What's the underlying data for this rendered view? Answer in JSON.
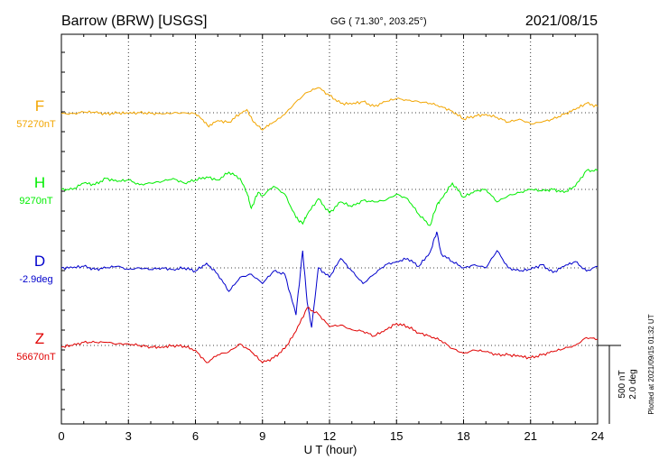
{
  "header": {
    "station": "Barrow (BRW)  [USGS]",
    "coords": "GG ( 71.30°, 203.25°)",
    "date": "2021/08/15"
  },
  "plotted_note": "Plotted at 2021/09/15 01:32 UT",
  "chart_data": {
    "type": "line",
    "xlabel": "U T (hour)",
    "xlim": [
      0,
      24
    ],
    "xticks": [
      0,
      3,
      6,
      9,
      12,
      15,
      18,
      21,
      24
    ],
    "grid": "dotted",
    "scale_bar": {
      "label_nt": "500 nT",
      "label_deg": "2.0 deg",
      "nt": 500,
      "deg": 2.0
    },
    "series": [
      {
        "name": "F",
        "baseline_label": "57270nT",
        "color": "#f2a500",
        "points": [
          [
            0,
            -6
          ],
          [
            0.5,
            -6
          ],
          [
            1,
            4
          ],
          [
            1.5,
            2
          ],
          [
            2,
            -8
          ],
          [
            2.5,
            -2
          ],
          [
            3,
            -4
          ],
          [
            3.5,
            0
          ],
          [
            4,
            -4
          ],
          [
            4.5,
            -8
          ],
          [
            5,
            -2
          ],
          [
            5.5,
            0
          ],
          [
            6,
            -6
          ],
          [
            6.2,
            -30
          ],
          [
            6.6,
            -90
          ],
          [
            7,
            -50
          ],
          [
            7.5,
            -60
          ],
          [
            8,
            -5
          ],
          [
            8.3,
            20
          ],
          [
            8.6,
            -60
          ],
          [
            9,
            -110
          ],
          [
            9.4,
            -70
          ],
          [
            10,
            -10
          ],
          [
            10.5,
            70
          ],
          [
            11,
            130
          ],
          [
            11.5,
            160
          ],
          [
            12,
            110
          ],
          [
            12.5,
            60
          ],
          [
            13,
            55
          ],
          [
            13.5,
            70
          ],
          [
            14,
            40
          ],
          [
            14.5,
            70
          ],
          [
            15,
            90
          ],
          [
            15.5,
            80
          ],
          [
            16,
            70
          ],
          [
            16.5,
            60
          ],
          [
            17,
            40
          ],
          [
            17.5,
            10
          ],
          [
            18,
            -40
          ],
          [
            18.5,
            -20
          ],
          [
            19,
            -10
          ],
          [
            19.5,
            -30
          ],
          [
            20,
            -60
          ],
          [
            20.5,
            -40
          ],
          [
            21,
            -70
          ],
          [
            21.5,
            -60
          ],
          [
            22,
            -40
          ],
          [
            22.5,
            -10
          ],
          [
            23,
            20
          ],
          [
            23.5,
            60
          ],
          [
            24,
            40
          ]
        ]
      },
      {
        "name": "H",
        "baseline_label": "9270nT",
        "color": "#00ee00",
        "points": [
          [
            0,
            0
          ],
          [
            0.5,
            0
          ],
          [
            1,
            40
          ],
          [
            1.5,
            30
          ],
          [
            2,
            70
          ],
          [
            2.5,
            50
          ],
          [
            3,
            60
          ],
          [
            3.5,
            30
          ],
          [
            4,
            40
          ],
          [
            4.5,
            50
          ],
          [
            5,
            70
          ],
          [
            5.5,
            40
          ],
          [
            6,
            60
          ],
          [
            6.5,
            80
          ],
          [
            7,
            60
          ],
          [
            7.5,
            110
          ],
          [
            8,
            70
          ],
          [
            8.3,
            -20
          ],
          [
            8.5,
            -120
          ],
          [
            8.8,
            -20
          ],
          [
            9,
            -40
          ],
          [
            9.5,
            20
          ],
          [
            10,
            -30
          ],
          [
            10.5,
            -180
          ],
          [
            10.8,
            -220
          ],
          [
            11,
            -160
          ],
          [
            11.5,
            -60
          ],
          [
            12,
            -150
          ],
          [
            12.5,
            -80
          ],
          [
            13,
            -110
          ],
          [
            13.5,
            -70
          ],
          [
            14,
            -80
          ],
          [
            14.5,
            -70
          ],
          [
            15,
            -30
          ],
          [
            15.5,
            -60
          ],
          [
            16,
            -160
          ],
          [
            16.5,
            -230
          ],
          [
            16.8,
            -100
          ],
          [
            17,
            -60
          ],
          [
            17.5,
            40
          ],
          [
            18,
            -50
          ],
          [
            18.5,
            -10
          ],
          [
            19,
            0
          ],
          [
            19.5,
            -80
          ],
          [
            20,
            -40
          ],
          [
            20.5,
            -20
          ],
          [
            21,
            0
          ],
          [
            21.5,
            -10
          ],
          [
            22,
            0
          ],
          [
            22.5,
            -20
          ],
          [
            23,
            20
          ],
          [
            23.5,
            120
          ],
          [
            24,
            120
          ]
        ]
      },
      {
        "name": "D",
        "baseline_label": "-2.9deg",
        "color": "#0000cc",
        "points": [
          [
            0,
            0
          ],
          [
            0.5,
            0
          ],
          [
            1,
            10
          ],
          [
            1.5,
            -10
          ],
          [
            2,
            0
          ],
          [
            2.5,
            10
          ],
          [
            3,
            -10
          ],
          [
            3.5,
            0
          ],
          [
            4,
            -10
          ],
          [
            4.5,
            0
          ],
          [
            5,
            -10
          ],
          [
            5.5,
            0
          ],
          [
            6,
            -20
          ],
          [
            6.5,
            30
          ],
          [
            7,
            -40
          ],
          [
            7.5,
            -150
          ],
          [
            8,
            -60
          ],
          [
            8.5,
            -40
          ],
          [
            9,
            -100
          ],
          [
            9.5,
            -20
          ],
          [
            10,
            -40
          ],
          [
            10.5,
            -300
          ],
          [
            10.8,
            110
          ],
          [
            11,
            -220
          ],
          [
            11.2,
            -380
          ],
          [
            11.5,
            0
          ],
          [
            12,
            -60
          ],
          [
            12.5,
            60
          ],
          [
            13,
            -20
          ],
          [
            13.5,
            -100
          ],
          [
            14,
            -40
          ],
          [
            14.5,
            20
          ],
          [
            15,
            40
          ],
          [
            15.5,
            60
          ],
          [
            16,
            10
          ],
          [
            16.5,
            100
          ],
          [
            16.8,
            230
          ],
          [
            17,
            90
          ],
          [
            17.5,
            40
          ],
          [
            18,
            0
          ],
          [
            18.5,
            20
          ],
          [
            19,
            0
          ],
          [
            19.5,
            110
          ],
          [
            20,
            0
          ],
          [
            20.5,
            -20
          ],
          [
            21,
            -10
          ],
          [
            21.5,
            20
          ],
          [
            22,
            -30
          ],
          [
            22.5,
            10
          ],
          [
            23,
            40
          ],
          [
            23.5,
            -20
          ],
          [
            24,
            10
          ]
        ]
      },
      {
        "name": "Z",
        "baseline_label": "56670nT",
        "color": "#e00000",
        "points": [
          [
            0,
            -10
          ],
          [
            0.5,
            0
          ],
          [
            1,
            20
          ],
          [
            1.5,
            20
          ],
          [
            2,
            20
          ],
          [
            2.5,
            10
          ],
          [
            3,
            10
          ],
          [
            3.5,
            0
          ],
          [
            4,
            -10
          ],
          [
            4.5,
            -10
          ],
          [
            5,
            0
          ],
          [
            5.5,
            -5
          ],
          [
            6,
            -30
          ],
          [
            6.5,
            -110
          ],
          [
            7,
            -60
          ],
          [
            7.5,
            -40
          ],
          [
            8,
            10
          ],
          [
            8.5,
            -40
          ],
          [
            9,
            -110
          ],
          [
            9.5,
            -80
          ],
          [
            10,
            -20
          ],
          [
            10.5,
            90
          ],
          [
            11,
            240
          ],
          [
            11.5,
            200
          ],
          [
            12,
            120
          ],
          [
            12.5,
            130
          ],
          [
            13,
            100
          ],
          [
            13.5,
            90
          ],
          [
            14,
            60
          ],
          [
            14.5,
            100
          ],
          [
            15,
            140
          ],
          [
            15.5,
            120
          ],
          [
            16,
            80
          ],
          [
            16.5,
            60
          ],
          [
            17,
            30
          ],
          [
            17.5,
            -20
          ],
          [
            18,
            -50
          ],
          [
            18.5,
            -30
          ],
          [
            19,
            -40
          ],
          [
            19.5,
            -60
          ],
          [
            20,
            -60
          ],
          [
            20.5,
            -70
          ],
          [
            21,
            -80
          ],
          [
            21.5,
            -60
          ],
          [
            22,
            -40
          ],
          [
            22.5,
            -20
          ],
          [
            23,
            0
          ],
          [
            23.5,
            50
          ],
          [
            24,
            40
          ]
        ]
      }
    ]
  }
}
